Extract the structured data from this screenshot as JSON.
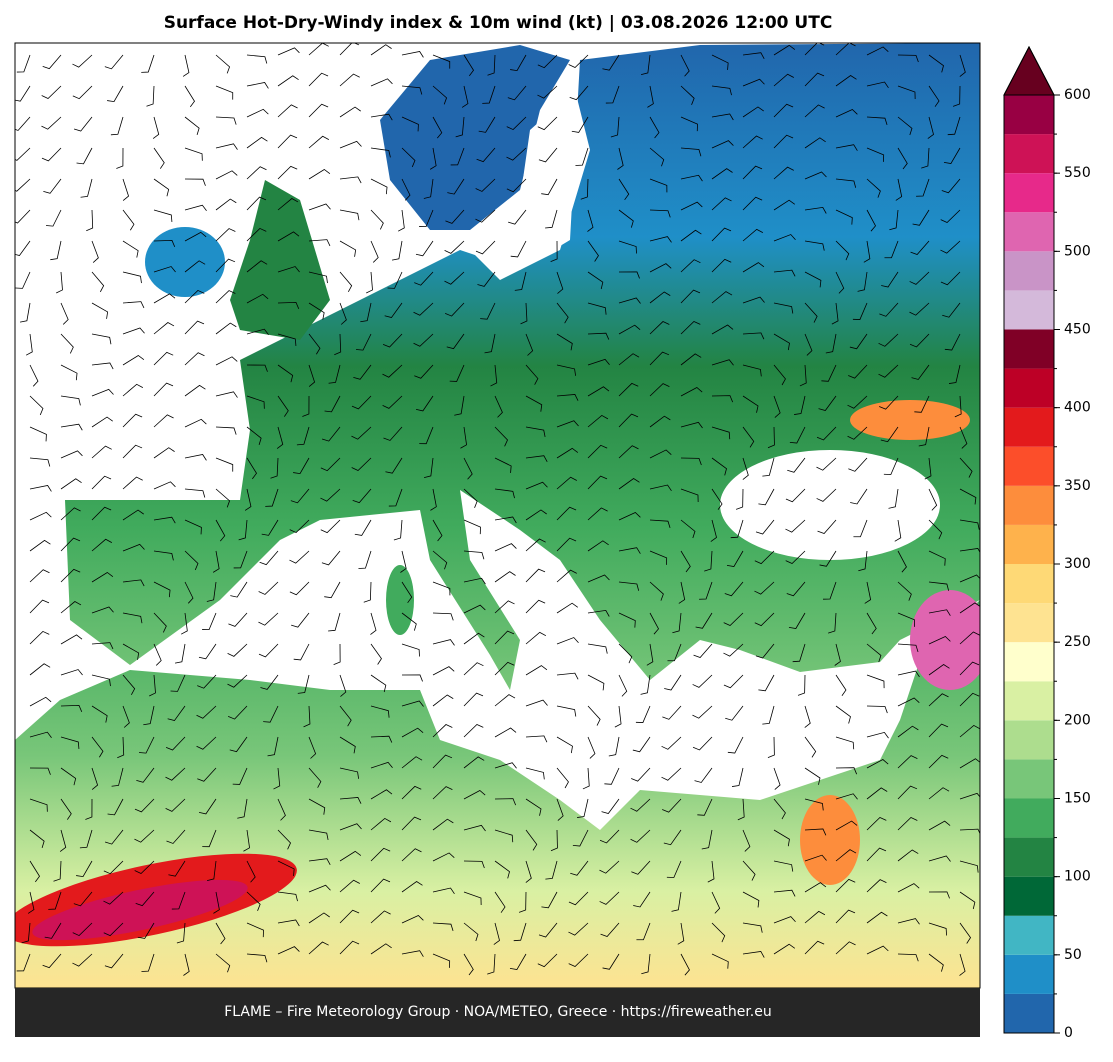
{
  "title": "Surface Hot-Dry-Windy index & 10m wind (kt)  |  03.08.2026 12:00 UTC",
  "footer": "FLAME – Fire Meteorology Group · NOA/METEO, Greece · https://fireweather.eu",
  "colorbar": {
    "levels": [
      0,
      25,
      50,
      75,
      100,
      125,
      150,
      175,
      200,
      225,
      250,
      275,
      300,
      325,
      350,
      375,
      400,
      425,
      450,
      475,
      500,
      525,
      550,
      575,
      600
    ],
    "colors": [
      "#2166ac",
      "#1f8fc8",
      "#41b6c4",
      "#006837",
      "#238443",
      "#41ab5d",
      "#78c679",
      "#addd8e",
      "#d9f0a3",
      "#ffffcc",
      "#fee391",
      "#fed976",
      "#feb24c",
      "#fd8d3c",
      "#fc4e2a",
      "#e31a1c",
      "#bd0026",
      "#800026",
      "#d4b9da",
      "#c994c7",
      "#df65b0",
      "#e7298a",
      "#ce1256",
      "#980043"
    ],
    "extend_color": "#67001f",
    "ticks": [
      0,
      50,
      100,
      150,
      200,
      250,
      300,
      350,
      400,
      450,
      500,
      550,
      600
    ]
  }
}
